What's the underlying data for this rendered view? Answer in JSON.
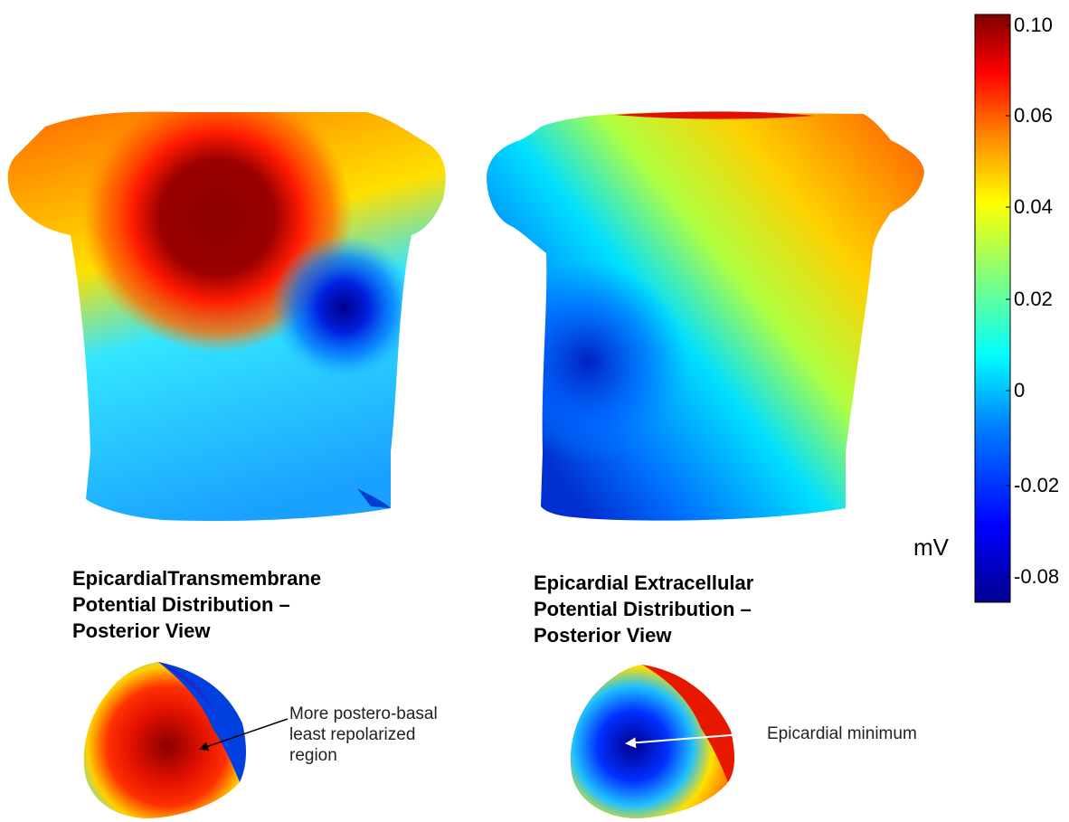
{
  "panels": [
    {
      "caption_line1": "EpicardialTransmembrane",
      "caption_line2": "Potential Distribution –",
      "caption_line3": "Posterior View"
    },
    {
      "caption_line1": "Epicardial Extracellular",
      "caption_line2": "Potential Distribution –",
      "caption_line3": "Posterior View"
    }
  ],
  "annotations": {
    "left_line1": "More postero-basal",
    "left_line2": "least repolarized",
    "left_line3": "region",
    "right": "Epicardial minimum"
  },
  "colorbar": {
    "unit": "mV",
    "ticks": [
      "0.10",
      "0.06",
      "0.04",
      "0.02",
      "0",
      "-0.02",
      "-0.08"
    ],
    "colormap": [
      "#00008f",
      "#0000ff",
      "#00bfff",
      "#7fff7f",
      "#ffff00",
      "#ff7f00",
      "#ff0000",
      "#7f0000"
    ]
  },
  "colors": {
    "annotation_arrow_left": "#000000",
    "annotation_arrow_right": "#ffffff"
  }
}
